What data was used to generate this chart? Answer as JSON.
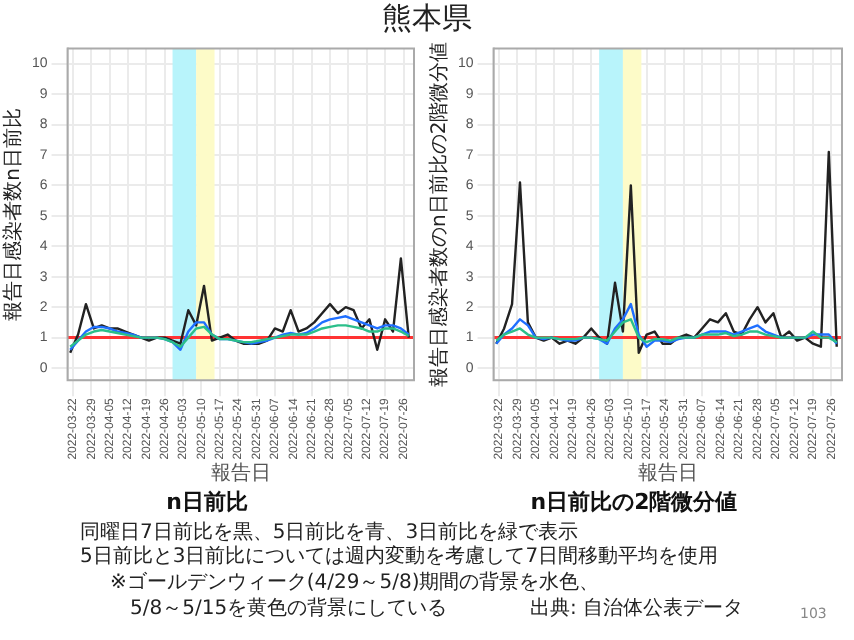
{
  "chart_data": [
    {
      "type": "line",
      "title": "n日前比",
      "xlabel": "報告日",
      "ylabel": "報告日感染者数n日前比",
      "x": [
        "2022-03-21",
        "2022-03-24",
        "2022-03-27",
        "2022-03-30",
        "2022-04-02",
        "2022-04-05",
        "2022-04-08",
        "2022-04-11",
        "2022-04-14",
        "2022-04-17",
        "2022-04-20",
        "2022-04-23",
        "2022-04-26",
        "2022-04-29",
        "2022-05-02",
        "2022-05-05",
        "2022-05-08",
        "2022-05-11",
        "2022-05-14",
        "2022-05-17",
        "2022-05-20",
        "2022-05-23",
        "2022-05-26",
        "2022-05-29",
        "2022-06-01",
        "2022-06-04",
        "2022-06-07",
        "2022-06-10",
        "2022-06-13",
        "2022-06-16",
        "2022-06-19",
        "2022-06-22",
        "2022-06-25",
        "2022-06-28",
        "2022-07-01",
        "2022-07-04",
        "2022-07-07",
        "2022-07-10",
        "2022-07-13",
        "2022-07-16",
        "2022-07-19",
        "2022-07-22",
        "2022-07-25",
        "2022-07-28"
      ],
      "series": [
        {
          "color": "#2bbf8a",
          "values": [
            0.7,
            0.9,
            1.1,
            1.2,
            1.25,
            1.2,
            1.15,
            1.1,
            1.05,
            1.0,
            1.0,
            1.0,
            0.95,
            0.85,
            0.7,
            1.0,
            1.3,
            1.35,
            1.1,
            0.95,
            0.95,
            0.9,
            0.85,
            0.85,
            0.9,
            0.95,
            1.0,
            1.05,
            1.1,
            1.1,
            1.1,
            1.2,
            1.3,
            1.35,
            1.4,
            1.4,
            1.35,
            1.3,
            1.2,
            1.2,
            1.3,
            1.3,
            1.2,
            1.05
          ]
        },
        {
          "color": "#1f6fff",
          "values": [
            0.6,
            0.9,
            1.2,
            1.35,
            1.35,
            1.3,
            1.2,
            1.15,
            1.1,
            1.0,
            1.0,
            1.0,
            0.95,
            0.85,
            0.6,
            1.2,
            1.5,
            1.5,
            1.1,
            0.95,
            0.95,
            0.9,
            0.85,
            0.8,
            0.85,
            0.9,
            1.0,
            1.1,
            1.15,
            1.1,
            1.15,
            1.3,
            1.5,
            1.6,
            1.65,
            1.7,
            1.6,
            1.5,
            1.4,
            1.3,
            1.4,
            1.4,
            1.3,
            1.1
          ]
        },
        {
          "color": "#222222",
          "values": [
            0.5,
            1.1,
            2.1,
            1.3,
            1.4,
            1.3,
            1.3,
            1.2,
            1.1,
            1.0,
            0.9,
            1.0,
            1.0,
            0.9,
            0.8,
            1.9,
            1.4,
            2.7,
            0.9,
            1.0,
            1.1,
            0.9,
            0.8,
            0.8,
            0.8,
            0.9,
            1.3,
            1.2,
            1.9,
            1.2,
            1.3,
            1.5,
            1.8,
            2.1,
            1.8,
            2.0,
            1.9,
            1.3,
            1.6,
            0.6,
            1.6,
            1.2,
            3.6,
            1.0
          ]
        }
      ],
      "xlim": [
        "2022-03-20",
        "2022-07-30"
      ],
      "xticks": [
        "2022-03-22",
        "2022-03-29",
        "2022-04-05",
        "2022-04-12",
        "2022-04-19",
        "2022-04-26",
        "2022-05-03",
        "2022-05-10",
        "2022-05-17",
        "2022-05-24",
        "2022-05-31",
        "2022-06-07",
        "2022-06-14",
        "2022-06-21",
        "2022-06-28",
        "2022-07-05",
        "2022-07-12",
        "2022-07-19",
        "2022-07-26"
      ],
      "ylim": [
        -0.4,
        10.5
      ],
      "yticks": [
        0,
        1,
        2,
        3,
        4,
        5,
        6,
        7,
        8,
        9,
        10
      ],
      "ref_lines": [
        {
          "axis": "y",
          "value": 1,
          "color": "#ff3333"
        }
      ],
      "bands": [
        {
          "axis": "x",
          "from": "2022-04-29",
          "to": "2022-05-08",
          "color": "#b8f4fb"
        },
        {
          "axis": "x",
          "from": "2022-05-08",
          "to": "2022-05-15",
          "color": "#fdfbc8"
        }
      ],
      "grid": true,
      "legend": false,
      "marker": "none",
      "line_style": "solid"
    },
    {
      "type": "line",
      "title": "n日前比の2階微分値",
      "xlabel": "報告日",
      "ylabel": "報告日感染者数のn日前比の2階微分値",
      "x": [
        "2022-03-21",
        "2022-03-24",
        "2022-03-27",
        "2022-03-30",
        "2022-04-02",
        "2022-04-05",
        "2022-04-08",
        "2022-04-11",
        "2022-04-14",
        "2022-04-17",
        "2022-04-20",
        "2022-04-23",
        "2022-04-26",
        "2022-04-29",
        "2022-05-02",
        "2022-05-05",
        "2022-05-08",
        "2022-05-11",
        "2022-05-14",
        "2022-05-17",
        "2022-05-20",
        "2022-05-23",
        "2022-05-26",
        "2022-05-29",
        "2022-06-01",
        "2022-06-04",
        "2022-06-07",
        "2022-06-10",
        "2022-06-13",
        "2022-06-16",
        "2022-06-19",
        "2022-06-22",
        "2022-06-25",
        "2022-06-28",
        "2022-07-01",
        "2022-07-04",
        "2022-07-07",
        "2022-07-10",
        "2022-07-13",
        "2022-07-16",
        "2022-07-19",
        "2022-07-22",
        "2022-07-25",
        "2022-07-28"
      ],
      "series": [
        {
          "color": "#2bbf8a",
          "values": [
            0.9,
            1.1,
            1.2,
            1.3,
            1.1,
            1.0,
            1.0,
            1.0,
            0.95,
            0.95,
            0.95,
            1.0,
            1.0,
            0.95,
            0.9,
            1.2,
            1.5,
            1.6,
            1.0,
            0.85,
            0.95,
            0.95,
            0.9,
            1.0,
            1.0,
            1.0,
            1.1,
            1.1,
            1.1,
            1.15,
            1.05,
            1.1,
            1.2,
            1.2,
            1.1,
            1.05,
            1.0,
            1.0,
            1.0,
            1.0,
            1.2,
            1.0,
            1.0,
            0.85
          ]
        },
        {
          "color": "#1f6fff",
          "values": [
            0.8,
            1.1,
            1.3,
            1.6,
            1.4,
            1.0,
            0.95,
            1.0,
            0.95,
            0.9,
            0.9,
            1.0,
            1.0,
            0.95,
            0.8,
            1.3,
            1.6,
            2.1,
            1.1,
            0.7,
            0.9,
            0.9,
            0.85,
            0.95,
            1.0,
            1.0,
            1.1,
            1.2,
            1.2,
            1.2,
            1.1,
            1.2,
            1.3,
            1.4,
            1.2,
            1.1,
            1.0,
            1.0,
            1.0,
            1.0,
            1.1,
            1.1,
            1.1,
            0.8
          ]
        },
        {
          "color": "#222222",
          "values": [
            0.8,
            1.3,
            2.1,
            6.1,
            1.5,
            1.0,
            0.9,
            1.0,
            0.8,
            0.9,
            0.8,
            1.0,
            1.3,
            1.0,
            0.8,
            2.8,
            1.2,
            6.0,
            0.5,
            1.1,
            1.2,
            0.8,
            0.8,
            1.0,
            1.1,
            1.0,
            1.3,
            1.6,
            1.5,
            1.8,
            1.2,
            1.1,
            1.6,
            2.0,
            1.5,
            1.8,
            1.0,
            1.2,
            0.9,
            1.0,
            0.8,
            0.7,
            7.1,
            0.7
          ]
        }
      ],
      "xlim": [
        "2022-03-20",
        "2022-07-30"
      ],
      "xticks": [
        "2022-03-22",
        "2022-03-29",
        "2022-04-05",
        "2022-04-12",
        "2022-04-19",
        "2022-04-26",
        "2022-05-03",
        "2022-05-10",
        "2022-05-17",
        "2022-05-24",
        "2022-05-31",
        "2022-06-07",
        "2022-06-14",
        "2022-06-21",
        "2022-06-28",
        "2022-07-05",
        "2022-07-12",
        "2022-07-19",
        "2022-07-26"
      ],
      "ylim": [
        -0.4,
        10.5
      ],
      "yticks": [
        0,
        1,
        2,
        3,
        4,
        5,
        6,
        7,
        8,
        9,
        10
      ],
      "ref_lines": [
        {
          "axis": "y",
          "value": 1,
          "color": "#ff3333"
        }
      ],
      "bands": [
        {
          "axis": "x",
          "from": "2022-04-29",
          "to": "2022-05-08",
          "color": "#b8f4fb"
        },
        {
          "axis": "x",
          "from": "2022-05-08",
          "to": "2022-05-15",
          "color": "#fdfbc8"
        }
      ],
      "grid": true,
      "legend": false,
      "marker": "none",
      "line_style": "solid"
    },
    {
      "type": "other",
      "title": "熊本県",
      "annotations": [
        "同曜日7日前比を黒、5日前比を青、3日前比を緑で表示",
        "5日前比と3日前比については週内変動を考慮して7日間移動平均を使用",
        "※ゴールデンウィーク(4/29～5/8)期間の背景を水色、",
        "5/8～5/15を黄色の背景にしている",
        "出典: 自治体公表データ",
        "103"
      ]
    }
  ]
}
